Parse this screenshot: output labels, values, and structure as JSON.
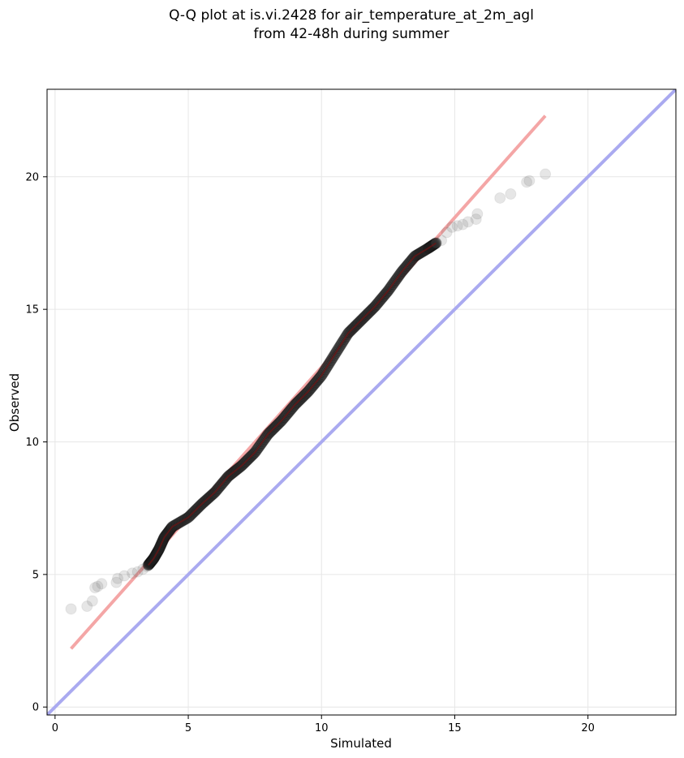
{
  "chart_data": {
    "type": "scatter",
    "title": "Q-Q plot at is.vi.2428 for air_temperature_at_2m_agl",
    "subtitle": "from 42-48h during summer",
    "xlabel": "Simulated",
    "ylabel": "Observed",
    "xlim": [
      -0.3,
      23.3
    ],
    "ylim": [
      -0.3,
      23.3
    ],
    "x_ticks": [
      0,
      5,
      10,
      15,
      20
    ],
    "y_ticks": [
      0,
      5,
      10,
      15,
      20
    ],
    "x_tick_labels": [
      "0",
      "5",
      "10",
      "15",
      "20"
    ],
    "y_tick_labels": [
      "0",
      "5",
      "10",
      "15",
      "20"
    ],
    "grid": true,
    "colors": {
      "points": "#555555",
      "fit_line": "#f4a6a6",
      "identity_line": "#aaaaf0",
      "dense_overlay": "#7a1010"
    },
    "identity_line": {
      "x": [
        -0.3,
        23.3
      ],
      "y": [
        -0.3,
        23.3
      ]
    },
    "fit_line": {
      "x": [
        0.6,
        18.4
      ],
      "y": [
        2.2,
        22.3
      ]
    },
    "tail_points": [
      {
        "x": 0.6,
        "y": 3.7
      },
      {
        "x": 1.2,
        "y": 3.8
      },
      {
        "x": 1.4,
        "y": 4.0
      },
      {
        "x": 1.5,
        "y": 4.5
      },
      {
        "x": 1.6,
        "y": 4.55
      },
      {
        "x": 1.75,
        "y": 4.65
      },
      {
        "x": 2.3,
        "y": 4.7
      },
      {
        "x": 2.35,
        "y": 4.85
      },
      {
        "x": 2.6,
        "y": 4.95
      },
      {
        "x": 2.9,
        "y": 5.05
      },
      {
        "x": 3.1,
        "y": 5.1
      },
      {
        "x": 3.3,
        "y": 5.2
      },
      {
        "x": 3.45,
        "y": 5.3
      },
      {
        "x": 14.5,
        "y": 17.6
      },
      {
        "x": 14.7,
        "y": 17.9
      },
      {
        "x": 14.9,
        "y": 18.1
      },
      {
        "x": 15.1,
        "y": 18.15
      },
      {
        "x": 15.3,
        "y": 18.2
      },
      {
        "x": 15.5,
        "y": 18.3
      },
      {
        "x": 15.8,
        "y": 18.4
      },
      {
        "x": 15.85,
        "y": 18.6
      },
      {
        "x": 16.7,
        "y": 19.2
      },
      {
        "x": 17.1,
        "y": 19.35
      },
      {
        "x": 17.7,
        "y": 19.8
      },
      {
        "x": 17.8,
        "y": 19.85
      },
      {
        "x": 18.4,
        "y": 20.1
      }
    ],
    "quantile_curve": [
      {
        "x": 3.5,
        "y": 5.35
      },
      {
        "x": 3.7,
        "y": 5.6
      },
      {
        "x": 3.9,
        "y": 5.95
      },
      {
        "x": 4.1,
        "y": 6.4
      },
      {
        "x": 4.4,
        "y": 6.8
      },
      {
        "x": 5.0,
        "y": 7.15
      },
      {
        "x": 5.5,
        "y": 7.65
      },
      {
        "x": 6.0,
        "y": 8.1
      },
      {
        "x": 6.5,
        "y": 8.7
      },
      {
        "x": 7.0,
        "y": 9.1
      },
      {
        "x": 7.5,
        "y": 9.6
      },
      {
        "x": 8.0,
        "y": 10.3
      },
      {
        "x": 8.5,
        "y": 10.8
      },
      {
        "x": 9.0,
        "y": 11.4
      },
      {
        "x": 9.5,
        "y": 11.9
      },
      {
        "x": 10.0,
        "y": 12.5
      },
      {
        "x": 10.5,
        "y": 13.3
      },
      {
        "x": 11.0,
        "y": 14.1
      },
      {
        "x": 11.5,
        "y": 14.6
      },
      {
        "x": 12.0,
        "y": 15.1
      },
      {
        "x": 12.5,
        "y": 15.7
      },
      {
        "x": 13.0,
        "y": 16.4
      },
      {
        "x": 13.5,
        "y": 17.0
      },
      {
        "x": 14.0,
        "y": 17.3
      },
      {
        "x": 14.3,
        "y": 17.5
      }
    ]
  }
}
